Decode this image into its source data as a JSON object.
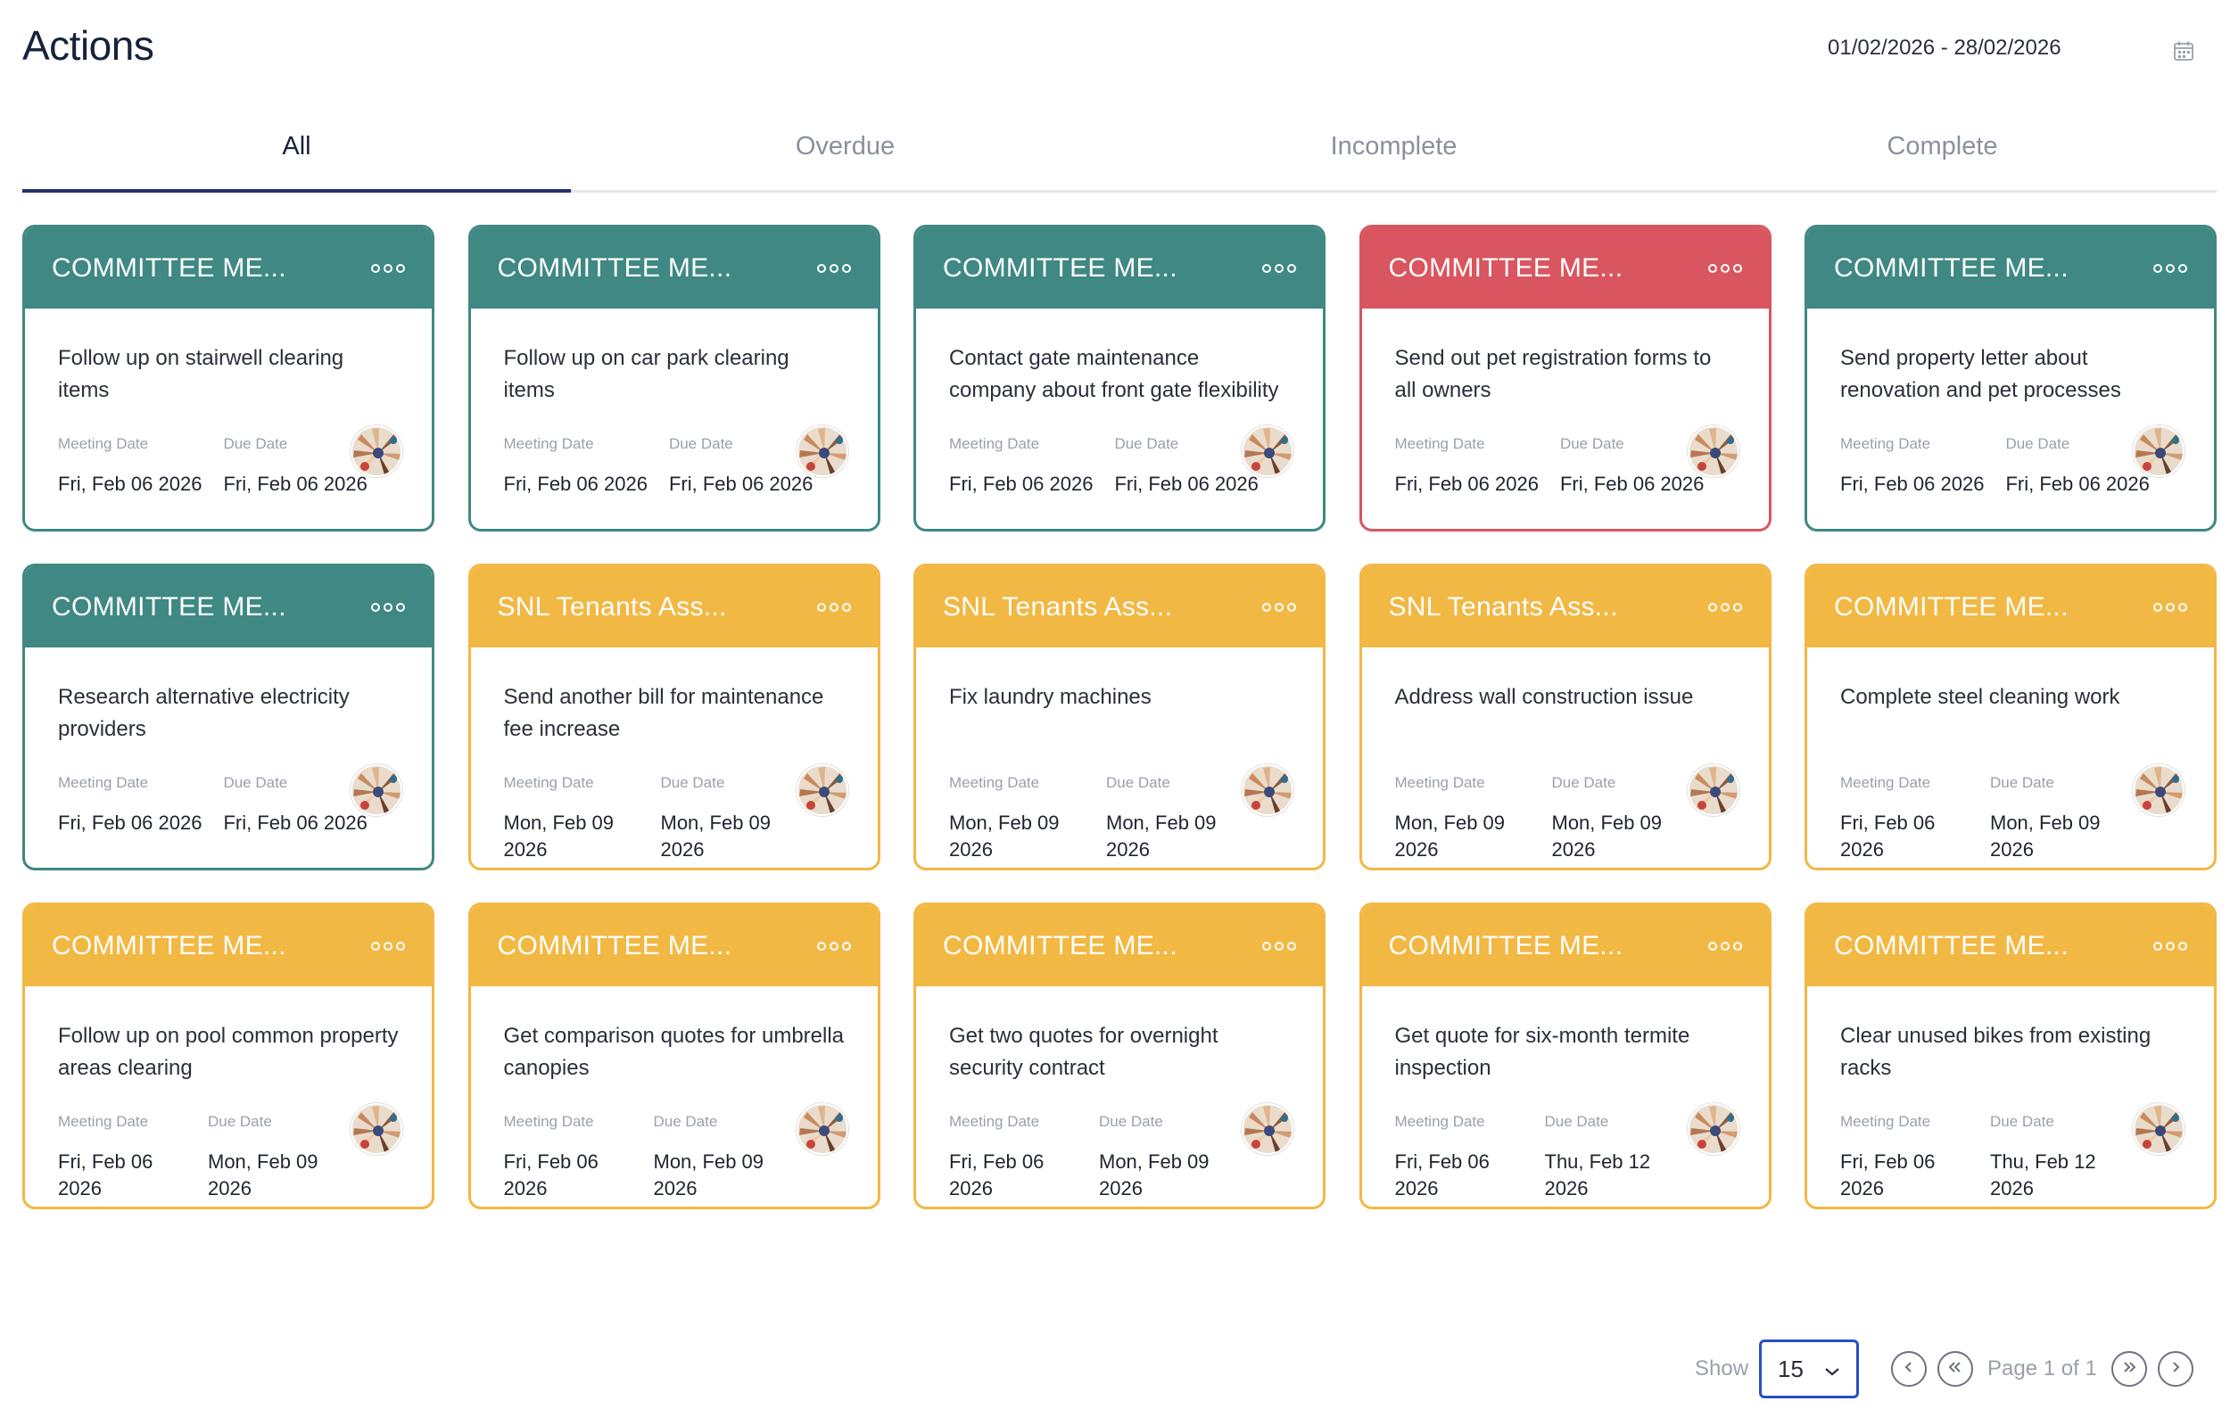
{
  "header": {
    "title": "Actions",
    "date_range": "01/02/2026 - 28/02/2026",
    "calendar_icon": "calendar-icon"
  },
  "tabs": [
    {
      "label": "All",
      "active": true
    },
    {
      "label": "Overdue",
      "active": false
    },
    {
      "label": "Incomplete",
      "active": false
    },
    {
      "label": "Complete",
      "active": false
    }
  ],
  "colors": {
    "teal": "#3f8883",
    "red": "#d9555f",
    "yellow": "#f2b844",
    "accent": "#26306b"
  },
  "labels": {
    "meeting_date": "Meeting Date",
    "due_date": "Due Date"
  },
  "cards": [
    {
      "color": "teal",
      "title": "COMMITTEE ME...",
      "text": "Follow up on stairwell clearing items",
      "meeting_date": "Fri, Feb 06 2026",
      "due_date": "Fri, Feb 06 2026"
    },
    {
      "color": "teal",
      "title": "COMMITTEE ME...",
      "text": "Follow up on car park clearing items",
      "meeting_date": "Fri, Feb 06 2026",
      "due_date": "Fri, Feb 06 2026"
    },
    {
      "color": "teal",
      "title": "COMMITTEE ME...",
      "text": "Contact gate maintenance company about front gate flexibility",
      "meeting_date": "Fri, Feb 06 2026",
      "due_date": "Fri, Feb 06 2026"
    },
    {
      "color": "red",
      "title": "COMMITTEE ME...",
      "text": "Send out pet registration forms to all owners",
      "meeting_date": "Fri, Feb 06 2026",
      "due_date": "Fri, Feb 06 2026"
    },
    {
      "color": "teal",
      "title": "COMMITTEE ME...",
      "text": "Send property letter about renovation and pet processes",
      "meeting_date": "Fri, Feb 06 2026",
      "due_date": "Fri, Feb 06 2026"
    },
    {
      "color": "teal",
      "title": "COMMITTEE ME...",
      "text": "Research alternative electricity providers",
      "meeting_date": "Fri, Feb 06 2026",
      "due_date": "Fri, Feb 06 2026"
    },
    {
      "color": "yellow",
      "title": "SNL Tenants Ass...",
      "text": "Send another bill for maintenance fee increase",
      "meeting_date": "Mon, Feb 09 2026",
      "due_date": "Mon, Feb 09 2026"
    },
    {
      "color": "yellow",
      "title": "SNL Tenants Ass...",
      "text": "Fix laundry machines",
      "meeting_date": "Mon, Feb 09 2026",
      "due_date": "Mon, Feb 09 2026"
    },
    {
      "color": "yellow",
      "title": "SNL Tenants Ass...",
      "text": "Address wall construction issue",
      "meeting_date": "Mon, Feb 09 2026",
      "due_date": "Mon, Feb 09 2026"
    },
    {
      "color": "yellow",
      "title": "COMMITTEE ME...",
      "text": "Complete steel cleaning work",
      "meeting_date": "Fri, Feb 06 2026",
      "due_date": "Mon, Feb 09 2026"
    },
    {
      "color": "yellow",
      "title": "COMMITTEE ME...",
      "text": "Follow up on pool common property areas clearing",
      "meeting_date": "Fri, Feb 06 2026",
      "due_date": "Mon, Feb 09 2026"
    },
    {
      "color": "yellow",
      "title": "COMMITTEE ME...",
      "text": "Get comparison quotes for umbrella canopies",
      "meeting_date": "Fri, Feb 06 2026",
      "due_date": "Mon, Feb 09 2026"
    },
    {
      "color": "yellow",
      "title": "COMMITTEE ME...",
      "text": "Get two quotes for overnight security contract",
      "meeting_date": "Fri, Feb 06 2026",
      "due_date": "Mon, Feb 09 2026"
    },
    {
      "color": "yellow",
      "title": "COMMITTEE ME...",
      "text": "Get quote for six-month termite inspection",
      "meeting_date": "Fri, Feb 06 2026",
      "due_date": "Thu, Feb 12 2026"
    },
    {
      "color": "yellow",
      "title": "COMMITTEE ME...",
      "text": "Clear unused bikes from existing racks",
      "meeting_date": "Fri, Feb 06 2026",
      "due_date": "Thu, Feb 12 2026"
    }
  ],
  "pagination": {
    "show_label": "Show",
    "page_size": "15",
    "page_info": "Page 1 of 1"
  }
}
